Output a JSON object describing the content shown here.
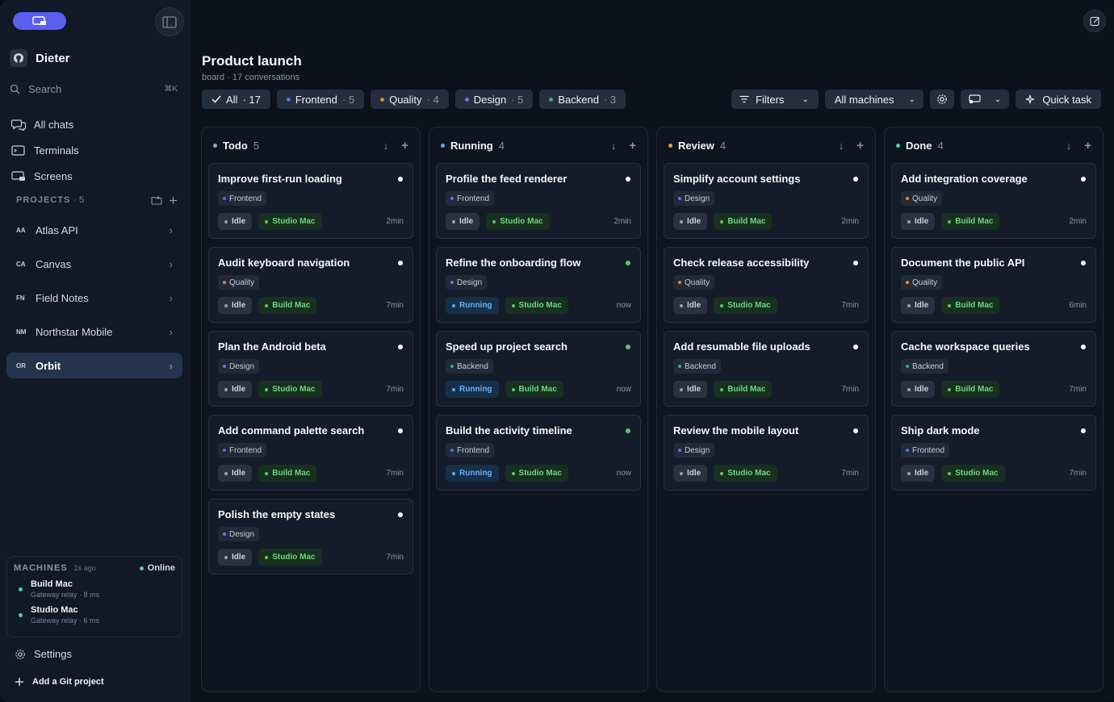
{
  "sidebar": {
    "user": "Dieter",
    "search": {
      "label": "Search",
      "shortcut": "⌘K"
    },
    "nav": [
      {
        "label": "All chats",
        "icon": "chats-icon"
      },
      {
        "label": "Terminals",
        "icon": "terminal-icon"
      },
      {
        "label": "Screens",
        "icon": "screen-icon"
      }
    ],
    "projects_label": "PROJECTS",
    "projects_count": "· 5",
    "projects": [
      {
        "abbr": "AA",
        "name": "Atlas API"
      },
      {
        "abbr": "CA",
        "name": "Canvas"
      },
      {
        "abbr": "FN",
        "name": "Field Notes"
      },
      {
        "abbr": "NM",
        "name": "Northstar Mobile"
      },
      {
        "abbr": "OR",
        "name": "Orbit"
      }
    ],
    "machines": {
      "label": "MACHINES",
      "ago": "1s ago",
      "status": "Online",
      "items": [
        {
          "name": "Build Mac",
          "sub": "Gateway relay · 8 ms"
        },
        {
          "name": "Studio Mac",
          "sub": "Gateway relay · 6 ms"
        }
      ]
    },
    "settings": "Settings",
    "add_git": "Add a Git project"
  },
  "header": {
    "title": "Product launch",
    "subtitle": "board · 17 conversations",
    "chips": [
      {
        "label": "All",
        "count": "· 17"
      },
      {
        "label": "Frontend",
        "count": "· 5",
        "color": "#4f6df5"
      },
      {
        "label": "Quality",
        "count": "· 4",
        "color": "#e08a2c"
      },
      {
        "label": "Design",
        "count": "· 5",
        "color": "#7a6cf0"
      },
      {
        "label": "Backend",
        "count": "· 3",
        "color": "#3fae7a"
      }
    ],
    "filters": "Filters",
    "machines_select": "All machines",
    "quick_task": "Quick task"
  },
  "colors": {
    "frontend": "#4f6df5",
    "quality": "#e08a2c",
    "design": "#7a6cf0",
    "backend": "#3fae7a",
    "todo": "#9aa3b2",
    "running": "#5fa8ee",
    "review": "#e0a33c",
    "done": "#4fd1a5",
    "online": "#4fd1a5",
    "green": "#5ec46e"
  },
  "columns": [
    {
      "name": "Todo",
      "count": "5",
      "color": "#9aa3b2",
      "cards": [
        {
          "title": "Improve first-run loading",
          "tag": "Frontend",
          "tagColor": "#4f6df5",
          "status": "Idle",
          "machine": "Studio Mac",
          "time": "2min",
          "dot": "#ffffff"
        },
        {
          "title": "Audit keyboard navigation",
          "tag": "Quality",
          "tagColor": "#e08a2c",
          "status": "Idle",
          "machine": "Build Mac",
          "time": "7min",
          "dot": "#ffffff"
        },
        {
          "title": "Plan the Android beta",
          "tag": "Design",
          "tagColor": "#7a6cf0",
          "status": "Idle",
          "machine": "Studio Mac",
          "time": "7min",
          "dot": "#ffffff"
        },
        {
          "title": "Add command palette search",
          "tag": "Frontend",
          "tagColor": "#4f6df5",
          "status": "Idle",
          "machine": "Build Mac",
          "time": "7min",
          "dot": "#ffffff"
        },
        {
          "title": "Polish the empty states",
          "tag": "Design",
          "tagColor": "#7a6cf0",
          "status": "Idle",
          "machine": "Studio Mac",
          "time": "7min",
          "dot": "#ffffff"
        }
      ]
    },
    {
      "name": "Running",
      "count": "4",
      "color": "#5fa8ee",
      "cards": [
        {
          "title": "Profile the feed renderer",
          "tag": "Frontend",
          "tagColor": "#4f6df5",
          "status": "Idle",
          "machine": "Studio Mac",
          "time": "2min",
          "dot": "#ffffff"
        },
        {
          "title": "Refine the onboarding flow",
          "tag": "Design",
          "tagColor": "#7a6cf0",
          "status": "Running",
          "machine": "Studio Mac",
          "time": "now",
          "dot": "#5ec46e"
        },
        {
          "title": "Speed up project search",
          "tag": "Backend",
          "tagColor": "#3fae7a",
          "status": "Running",
          "machine": "Build Mac",
          "time": "now",
          "dot": "#5ec46e"
        },
        {
          "title": "Build the activity timeline",
          "tag": "Frontend",
          "tagColor": "#4f6df5",
          "status": "Running",
          "machine": "Studio Mac",
          "time": "now",
          "dot": "#5ec46e"
        }
      ]
    },
    {
      "name": "Review",
      "count": "4",
      "color": "#e0a33c",
      "cards": [
        {
          "title": "Simplify account settings",
          "tag": "Design",
          "tagColor": "#7a6cf0",
          "status": "Idle",
          "machine": "Build Mac",
          "time": "2min",
          "dot": "#ffffff"
        },
        {
          "title": "Check release accessibility",
          "tag": "Quality",
          "tagColor": "#e08a2c",
          "status": "Idle",
          "machine": "Studio Mac",
          "time": "7min",
          "dot": "#ffffff"
        },
        {
          "title": "Add resumable file uploads",
          "tag": "Backend",
          "tagColor": "#3fae7a",
          "status": "Idle",
          "machine": "Build Mac",
          "time": "7min",
          "dot": "#ffffff"
        },
        {
          "title": "Review the mobile layout",
          "tag": "Design",
          "tagColor": "#7a6cf0",
          "status": "Idle",
          "machine": "Studio Mac",
          "time": "7min",
          "dot": "#ffffff"
        }
      ]
    },
    {
      "name": "Done",
      "count": "4",
      "color": "#4fd1a5",
      "cards": [
        {
          "title": "Add integration coverage",
          "tag": "Quality",
          "tagColor": "#e08a2c",
          "status": "Idle",
          "machine": "Build Mac",
          "time": "2min",
          "dot": "#ffffff"
        },
        {
          "title": "Document the public API",
          "tag": "Quality",
          "tagColor": "#e08a2c",
          "status": "Idle",
          "machine": "Build Mac",
          "time": "6min",
          "dot": "#ffffff"
        },
        {
          "title": "Cache workspace queries",
          "tag": "Backend",
          "tagColor": "#3fae7a",
          "status": "Idle",
          "machine": "Build Mac",
          "time": "7min",
          "dot": "#ffffff"
        },
        {
          "title": "Ship dark mode",
          "tag": "Frontend",
          "tagColor": "#4f6df5",
          "status": "Idle",
          "machine": "Studio Mac",
          "time": "7min",
          "dot": "#ffffff"
        }
      ]
    }
  ]
}
